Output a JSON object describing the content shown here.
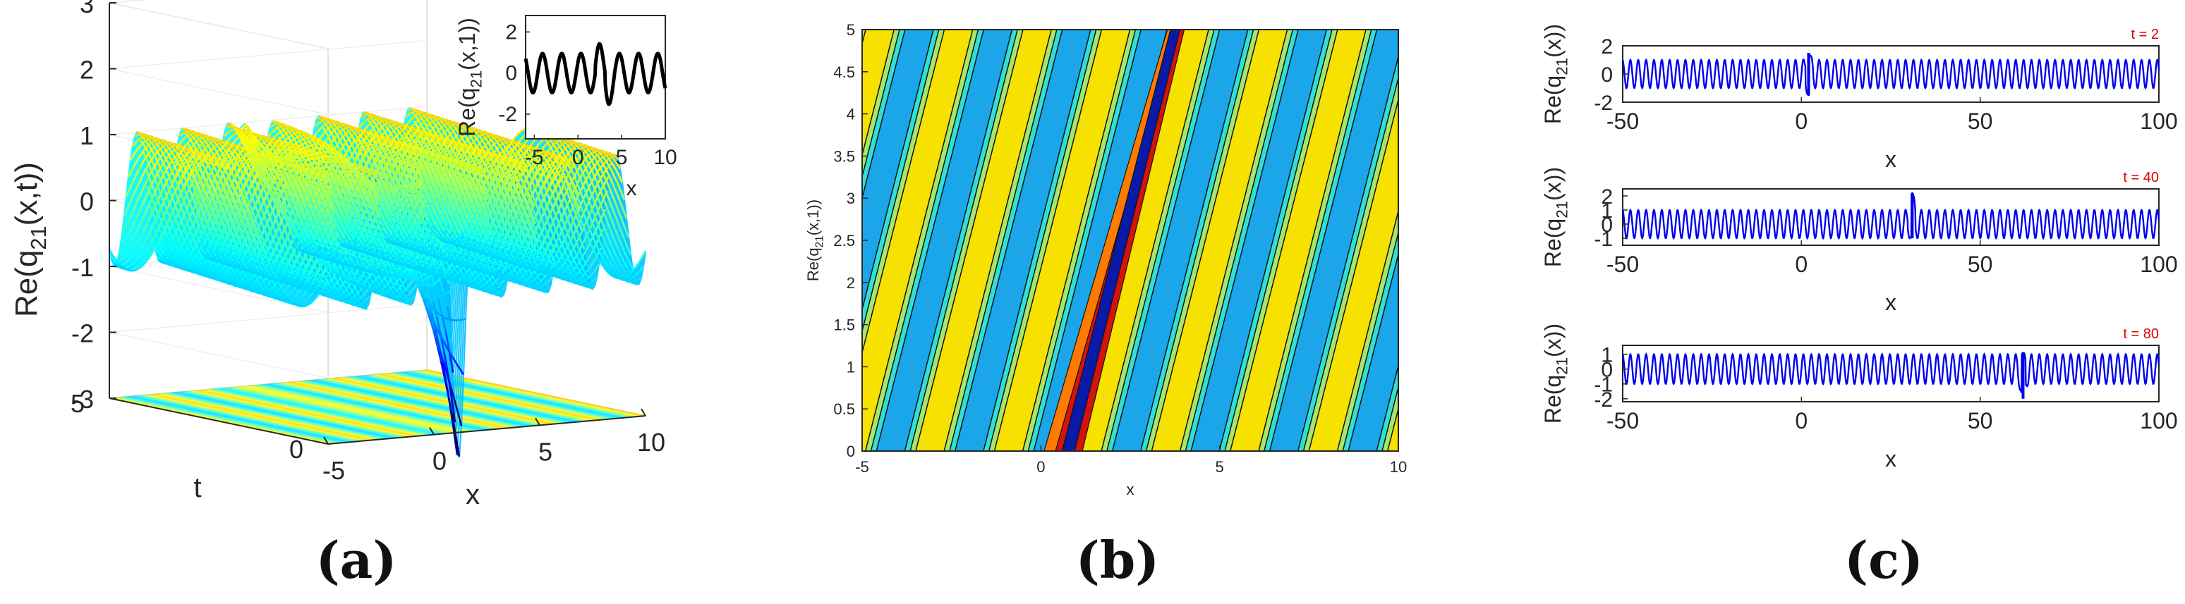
{
  "panel_labels": [
    "(a)",
    "(b)",
    "(c)"
  ],
  "chart_data": [
    {
      "type": "surface",
      "panel": "(a)",
      "zlabel": "Re(q21(x,t))",
      "xlabel": "x",
      "ylabel": "t",
      "xlim": [
        -5,
        10
      ],
      "ylim": [
        0,
        5
      ],
      "zlim": [
        -3,
        3
      ],
      "x_ticks": [
        -5,
        0,
        5,
        10
      ],
      "y_ticks": [
        0,
        5
      ],
      "z_ticks": [
        -3,
        -2,
        -1,
        0,
        1,
        2,
        3
      ],
      "x_tick_labels": [
        "-5",
        "0",
        "5",
        "10"
      ],
      "y_tick_labels": [
        "0",
        "5"
      ],
      "z_tick_labels": [
        "-3",
        "-2",
        "-1",
        "0",
        "1",
        "2",
        "3"
      ],
      "colormap": "jet",
      "background_wave": {
        "amplitude": 1,
        "crests_over_x_range": 7
      },
      "peak": {
        "x": 1.5,
        "t": 3.8,
        "value": 2.3
      },
      "trough": {
        "x": 0.8,
        "t": 0.2,
        "value": -2.9
      },
      "contour_projection_at": -3,
      "inset": {
        "type": "line",
        "ylabel": "Re(q21(x,1))",
        "xlabel": "x",
        "xlim": [
          -6,
          10
        ],
        "ylim": [
          -3.2,
          2.8
        ],
        "x_ticks": [
          -5,
          0,
          5,
          10
        ],
        "y_ticks": [
          -2,
          0,
          2
        ],
        "x_tick_labels": [
          "-5",
          "0",
          "5",
          "10"
        ],
        "y_tick_labels": [
          "-2",
          "0",
          "2"
        ],
        "color": "#000000",
        "wave": {
          "amplitude": 0.95,
          "period": 2.2,
          "bump_x": 2.3,
          "bump_value": 1.5,
          "dip_value": -1.6
        }
      }
    },
    {
      "type": "contour",
      "panel": "(b)",
      "xlabel": "x",
      "ylabel": "Re(q21(x,1))",
      "xlim": [
        -5,
        10
      ],
      "ylim": [
        0,
        5
      ],
      "x_ticks": [
        -5,
        0,
        5,
        10
      ],
      "y_ticks": [
        0,
        0.5,
        1,
        1.5,
        2,
        2.5,
        3,
        3.5,
        4,
        4.5,
        5
      ],
      "x_tick_labels": [
        "-5",
        "0",
        "5",
        "10"
      ],
      "y_tick_labels": [
        "0",
        "0.5",
        "1",
        "1.5",
        "2",
        "2.5",
        "3",
        "3.5",
        "4",
        "4.5",
        "5"
      ],
      "level_colors": [
        "#0a1aa8",
        "#1aa6e8",
        "#2fe0d8",
        "#a8e66b",
        "#f6e100",
        "#ff7a00",
        "#d4140b"
      ],
      "stripe_period_x": 2.2,
      "stripe_slope_dx_per_dt": 0.6,
      "soliton_track": {
        "x_at_t0": 0.8,
        "x_at_t5": 3.7
      }
    },
    {
      "type": "line",
      "panel": "(c)",
      "subplots": [
        {
          "title": "t = 2",
          "ylabel": "Re(q21(x))",
          "xlabel": "x",
          "xlim": [
            -50,
            100
          ],
          "ylim": [
            -2,
            2
          ],
          "x_ticks": [
            -50,
            0,
            50,
            100
          ],
          "x_tick_labels": [
            "-50",
            "0",
            "50",
            "100"
          ],
          "y_ticks": [
            -2,
            0,
            2
          ],
          "y_tick_labels": [
            "-2",
            "0",
            "2"
          ],
          "spike_x": 2,
          "spike_up": 1.5,
          "spike_down": -1.5
        },
        {
          "title": "t = 40",
          "ylabel": "Re(q21(x))",
          "xlabel": "x",
          "xlim": [
            -50,
            100
          ],
          "ylim": [
            -1.5,
            2.5
          ],
          "x_ticks": [
            -50,
            0,
            50,
            100
          ],
          "x_tick_labels": [
            "-50",
            "0",
            "50",
            "100"
          ],
          "y_ticks": [
            -1,
            0,
            1,
            2
          ],
          "y_tick_labels": [
            "-1",
            "0",
            "1",
            "2"
          ],
          "spike_x": 31,
          "spike_up": 2.2,
          "spike_down": -1.0
        },
        {
          "title": "t = 80",
          "ylabel": "Re(q21(x))",
          "xlabel": "x",
          "xlim": [
            -50,
            100
          ],
          "ylim": [
            -2.2,
            1.6
          ],
          "x_ticks": [
            -50,
            0,
            50,
            100
          ],
          "x_tick_labels": [
            "-50",
            "0",
            "50",
            "100"
          ],
          "y_ticks": [
            -2,
            -1,
            0,
            1
          ],
          "y_tick_labels": [
            "-2",
            "-1",
            "0",
            "1"
          ],
          "spike_x": 62,
          "spike_up": 1.1,
          "spike_down": -2.0
        }
      ],
      "background_amplitude": 1,
      "color": "#0000ee",
      "title_color": "#dd0000"
    }
  ]
}
